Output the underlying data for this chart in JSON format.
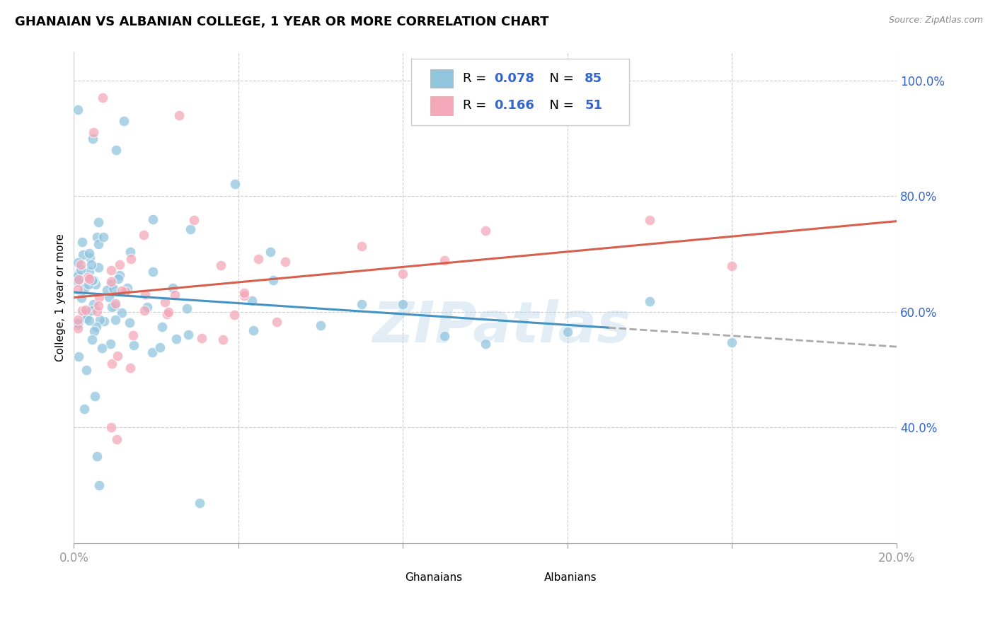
{
  "title": "GHANAIAN VS ALBANIAN COLLEGE, 1 YEAR OR MORE CORRELATION CHART",
  "source": "Source: ZipAtlas.com",
  "watermark": "ZIPatlas",
  "x_min": 0.0,
  "x_max": 0.2,
  "y_min": 0.2,
  "y_max": 1.05,
  "x_ticks": [
    0.0,
    0.04,
    0.08,
    0.12,
    0.16,
    0.2
  ],
  "y_ticks": [
    0.4,
    0.6,
    0.8,
    1.0
  ],
  "ghanaian_R": 0.078,
  "ghanaian_N": 85,
  "albanian_R": 0.166,
  "albanian_N": 51,
  "blue_color": "#92c5de",
  "pink_color": "#f4a7b9",
  "blue_line_color": "#4393c3",
  "pink_line_color": "#d6604d",
  "legend_R_N_color": "#3366cc",
  "ghanaian_x": [
    0.001,
    0.001,
    0.002,
    0.002,
    0.002,
    0.002,
    0.002,
    0.003,
    0.003,
    0.003,
    0.003,
    0.003,
    0.003,
    0.003,
    0.004,
    0.004,
    0.004,
    0.004,
    0.004,
    0.004,
    0.004,
    0.004,
    0.005,
    0.005,
    0.005,
    0.005,
    0.005,
    0.005,
    0.005,
    0.006,
    0.006,
    0.006,
    0.006,
    0.006,
    0.007,
    0.007,
    0.007,
    0.007,
    0.008,
    0.008,
    0.008,
    0.009,
    0.009,
    0.01,
    0.01,
    0.01,
    0.011,
    0.011,
    0.012,
    0.012,
    0.013,
    0.013,
    0.014,
    0.015,
    0.016,
    0.017,
    0.018,
    0.019,
    0.02,
    0.021,
    0.022,
    0.023,
    0.025,
    0.027,
    0.028,
    0.03,
    0.032,
    0.035,
    0.038,
    0.04,
    0.045,
    0.05,
    0.055,
    0.06,
    0.07,
    0.08,
    0.09,
    0.1,
    0.12,
    0.13,
    0.14,
    0.15,
    0.155,
    0.16,
    0.17
  ],
  "ghanaian_y": [
    0.62,
    0.64,
    0.58,
    0.6,
    0.62,
    0.64,
    0.65,
    0.56,
    0.58,
    0.6,
    0.62,
    0.63,
    0.65,
    0.68,
    0.57,
    0.58,
    0.59,
    0.6,
    0.61,
    0.62,
    0.64,
    0.66,
    0.57,
    0.58,
    0.59,
    0.6,
    0.62,
    0.64,
    0.65,
    0.58,
    0.59,
    0.6,
    0.62,
    0.64,
    0.59,
    0.6,
    0.62,
    0.64,
    0.6,
    0.61,
    0.63,
    0.61,
    0.63,
    0.6,
    0.62,
    0.64,
    0.62,
    0.64,
    0.62,
    0.64,
    0.63,
    0.65,
    0.64,
    0.65,
    0.66,
    0.67,
    0.66,
    0.68,
    0.67,
    0.68,
    0.69,
    0.7,
    0.72,
    0.73,
    0.74,
    0.75,
    0.76,
    0.78,
    0.8,
    0.82,
    0.84,
    0.86,
    0.88,
    0.91,
    0.93,
    0.95,
    0.97,
    0.95,
    0.27,
    0.38,
    0.41,
    0.44,
    0.49,
    0.53,
    0.55
  ],
  "albanian_x": [
    0.001,
    0.002,
    0.002,
    0.003,
    0.003,
    0.003,
    0.004,
    0.004,
    0.004,
    0.005,
    0.005,
    0.005,
    0.006,
    0.006,
    0.007,
    0.007,
    0.008,
    0.008,
    0.009,
    0.01,
    0.01,
    0.011,
    0.012,
    0.013,
    0.014,
    0.015,
    0.016,
    0.017,
    0.018,
    0.02,
    0.022,
    0.024,
    0.025,
    0.027,
    0.03,
    0.032,
    0.035,
    0.038,
    0.04,
    0.045,
    0.05,
    0.055,
    0.06,
    0.065,
    0.07,
    0.075,
    0.08,
    0.09,
    0.1,
    0.14,
    0.155
  ],
  "albanian_y": [
    0.64,
    0.64,
    0.66,
    0.62,
    0.64,
    0.66,
    0.62,
    0.65,
    0.68,
    0.62,
    0.65,
    0.68,
    0.63,
    0.66,
    0.63,
    0.66,
    0.63,
    0.66,
    0.64,
    0.63,
    0.66,
    0.64,
    0.65,
    0.65,
    0.65,
    0.66,
    0.66,
    0.66,
    0.64,
    0.65,
    0.65,
    0.66,
    0.68,
    0.68,
    0.68,
    0.7,
    0.7,
    0.71,
    0.72,
    0.73,
    0.73,
    0.74,
    0.75,
    0.76,
    0.77,
    0.78,
    0.79,
    0.81,
    0.83,
    0.9,
    0.93
  ],
  "albanian_y_raw": [
    0.64,
    0.9,
    0.85,
    0.63,
    0.65,
    0.68,
    0.62,
    0.65,
    0.68,
    0.62,
    0.65,
    0.68,
    0.72,
    0.73,
    0.74,
    0.75,
    0.76,
    0.78,
    0.79,
    0.81,
    0.64,
    0.66,
    0.64,
    0.65,
    0.66,
    0.68,
    0.64,
    0.66,
    0.64,
    0.66,
    0.64,
    0.66,
    0.64,
    0.66,
    0.55,
    0.72,
    0.6,
    0.38,
    0.6,
    0.58,
    0.56,
    0.57,
    0.58,
    0.59,
    0.57,
    0.58,
    0.56,
    0.68,
    0.68,
    0.72,
    0.72
  ]
}
